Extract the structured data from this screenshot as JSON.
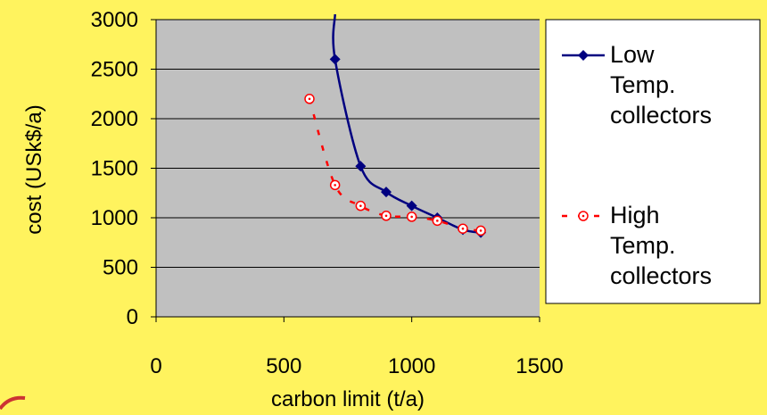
{
  "colors": {
    "background": "#FFF35E",
    "plot_area": "#C0C0C0",
    "low_temp_series": "#000080",
    "high_temp_series": "#FF0000"
  },
  "chart_data": {
    "type": "line",
    "xlabel": "carbon limit (t/a)",
    "ylabel": "cost (USk$/a)",
    "xlim": [
      0,
      1500
    ],
    "ylim": [
      0,
      3000
    ],
    "xticks": [
      "0",
      "500",
      "1000",
      "1500"
    ],
    "yticks": [
      "0",
      "500",
      "1000",
      "1500",
      "2000",
      "2500",
      "3000"
    ],
    "grid": "horizontal",
    "legend_position": "right",
    "series": [
      {
        "name": "Low Temp. collectors",
        "legend_lines": [
          "Low",
          "Temp.",
          "collectors"
        ],
        "color": "#000080",
        "line_style": "solid",
        "marker": "diamond",
        "x": [
          700,
          800,
          900,
          1000,
          1100,
          1200,
          1270
        ],
        "y": [
          2600,
          1520,
          1260,
          1120,
          1000,
          880,
          850
        ]
      },
      {
        "name": "High Temp. collectors",
        "legend_lines": [
          "High",
          "Temp.",
          "collectors"
        ],
        "color": "#FF0000",
        "line_style": "dashed",
        "marker": "circle",
        "x": [
          600,
          700,
          800,
          900,
          1000,
          1100,
          1200,
          1270
        ],
        "y": [
          2200,
          1330,
          1120,
          1020,
          1010,
          970,
          890,
          870
        ]
      }
    ]
  }
}
